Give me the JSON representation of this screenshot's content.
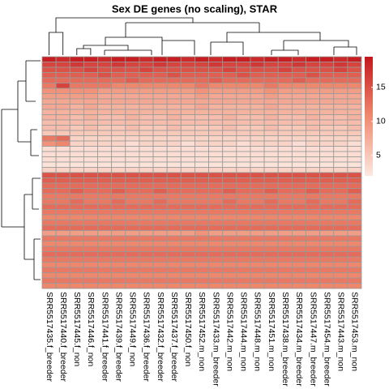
{
  "chart_data": {
    "type": "heatmap",
    "title": "Sex DE genes (no scaling), STAR",
    "columns": [
      "SRR5517435.f_breeder",
      "SRR5517440.f_breeder",
      "SRR5517445.f_non",
      "SRR5517446.f_non",
      "SRR5517441.f_breeder",
      "SRR5517439.f_breeder",
      "SRR5517449.f_non",
      "SRR5517436.f_breeder",
      "SRR5517432.f_breeder",
      "SRR5517437.f_breeder",
      "SRR5517450.f_non",
      "SRR5517452.m_non",
      "SRR5517433.m_breeder",
      "SRR5517442.m_non",
      "SRR5517444.m_non",
      "SRR5517448.m_non",
      "SRR5517451.m_non",
      "SRR5517438.m_breeder",
      "SRR5517434.m_breeder",
      "SRR5517447.m_breeder",
      "SRR5517454.m_breeder",
      "SRR5517443.m_non",
      "SRR5517453.m_non"
    ],
    "matrix": [
      [
        19,
        18,
        19,
        19,
        18,
        19,
        19,
        18,
        19,
        19,
        18,
        19,
        18,
        19,
        19,
        18,
        19,
        19,
        18,
        19,
        19,
        18,
        19
      ],
      [
        16,
        16,
        17,
        16,
        16,
        17,
        16,
        16,
        17,
        16,
        16,
        16,
        17,
        16,
        16,
        17,
        16,
        16,
        17,
        16,
        16,
        17,
        16
      ],
      [
        15,
        15,
        15,
        16,
        15,
        15,
        15,
        16,
        15,
        15,
        15,
        15,
        15,
        16,
        15,
        15,
        15,
        16,
        15,
        15,
        15,
        16,
        15
      ],
      [
        14,
        14,
        14,
        14,
        15,
        14,
        14,
        14,
        14,
        15,
        14,
        14,
        14,
        14,
        15,
        14,
        14,
        14,
        14,
        15,
        14,
        14,
        14
      ],
      [
        13,
        13,
        13,
        13,
        13,
        13,
        14,
        13,
        13,
        13,
        13,
        13,
        14,
        13,
        13,
        13,
        13,
        13,
        14,
        13,
        13,
        13,
        13
      ],
      [
        12,
        16,
        12,
        12,
        12,
        11,
        11,
        11,
        11,
        11,
        11,
        12,
        11,
        11,
        11,
        11,
        12,
        11,
        11,
        11,
        11,
        11,
        11
      ],
      [
        10,
        10,
        10,
        10,
        9,
        9,
        9,
        9,
        9,
        9,
        9,
        10,
        9,
        9,
        9,
        9,
        10,
        9,
        9,
        9,
        9,
        9,
        9
      ],
      [
        9,
        9,
        9,
        9,
        8,
        8,
        8,
        8,
        8,
        8,
        8,
        9,
        8,
        8,
        8,
        8,
        9,
        8,
        8,
        8,
        8,
        8,
        8
      ],
      [
        8,
        8,
        8,
        8,
        8,
        8,
        8,
        8,
        8,
        8,
        8,
        8,
        8,
        8,
        8,
        8,
        8,
        8,
        8,
        8,
        8,
        8,
        8
      ],
      [
        8,
        8,
        7,
        8,
        7,
        7,
        7,
        7,
        7,
        7,
        7,
        8,
        7,
        7,
        7,
        7,
        8,
        7,
        7,
        7,
        7,
        7,
        7
      ],
      [
        7,
        7,
        7,
        7,
        7,
        7,
        7,
        7,
        7,
        7,
        7,
        7,
        7,
        7,
        7,
        7,
        7,
        7,
        7,
        7,
        7,
        7,
        7
      ],
      [
        7,
        7,
        6,
        7,
        6,
        6,
        7,
        6,
        6,
        7,
        6,
        6,
        6,
        7,
        6,
        6,
        7,
        6,
        6,
        7,
        6,
        6,
        7
      ],
      [
        6,
        6,
        6,
        6,
        6,
        6,
        6,
        6,
        6,
        6,
        6,
        6,
        6,
        6,
        6,
        6,
        6,
        6,
        6,
        6,
        6,
        6,
        6
      ],
      [
        6,
        6,
        5,
        6,
        5,
        5,
        6,
        5,
        5,
        6,
        5,
        5,
        5,
        6,
        5,
        5,
        6,
        5,
        5,
        6,
        5,
        5,
        6
      ],
      [
        5,
        5,
        5,
        5,
        5,
        5,
        5,
        5,
        5,
        5,
        5,
        5,
        5,
        5,
        5,
        5,
        5,
        5,
        5,
        5,
        5,
        5,
        5
      ],
      [
        12,
        13,
        4,
        4,
        4,
        4,
        4,
        4,
        4,
        4,
        4,
        4,
        4,
        4,
        4,
        4,
        4,
        4,
        4,
        4,
        4,
        4,
        4
      ],
      [
        10,
        11,
        4,
        4,
        4,
        4,
        3,
        4,
        4,
        4,
        3,
        4,
        4,
        4,
        3,
        4,
        4,
        4,
        3,
        4,
        4,
        4,
        3
      ],
      [
        3,
        3,
        3,
        3,
        3,
        3,
        3,
        3,
        3,
        3,
        3,
        3,
        3,
        3,
        3,
        3,
        3,
        3,
        3,
        3,
        3,
        3,
        3
      ],
      [
        3,
        3,
        3,
        3,
        3,
        3,
        3,
        3,
        3,
        3,
        3,
        3,
        3,
        3,
        3,
        3,
        3,
        3,
        3,
        3,
        3,
        3,
        3
      ],
      [
        3,
        3,
        3,
        3,
        3,
        3,
        3,
        3,
        3,
        3,
        3,
        3,
        3,
        3,
        3,
        3,
        3,
        3,
        3,
        3,
        3,
        3,
        3
      ],
      [
        2.5,
        2.5,
        2.5,
        2.5,
        2.5,
        2.5,
        2.5,
        2.5,
        2.5,
        2.5,
        2.5,
        2.5,
        2.5,
        2.5,
        2.5,
        2.5,
        2.5,
        2.5,
        2.5,
        2.5,
        2.5,
        2.5,
        2.5
      ],
      [
        4,
        4,
        4,
        4,
        4,
        4,
        4,
        4,
        4,
        4,
        4,
        4,
        4,
        4,
        4,
        4,
        4,
        4,
        4,
        4,
        4,
        4,
        4
      ],
      [
        15,
        15,
        15,
        15,
        15,
        15,
        15,
        15,
        15,
        15,
        15,
        15,
        15,
        15,
        15,
        15,
        15,
        15,
        15,
        15,
        15,
        15,
        15
      ],
      [
        14,
        14,
        14,
        14,
        14,
        14,
        14,
        14,
        14,
        14,
        14,
        14,
        14,
        14,
        14,
        14,
        14,
        14,
        14,
        14,
        14,
        14,
        14
      ],
      [
        13,
        13,
        13,
        13,
        13,
        13,
        13,
        13,
        13,
        13,
        13,
        13,
        13,
        13,
        13,
        13,
        13,
        13,
        13,
        13,
        13,
        13,
        13
      ],
      [
        13,
        13,
        14,
        13,
        13,
        14,
        13,
        13,
        14,
        13,
        13,
        13,
        13,
        14,
        13,
        13,
        14,
        13,
        13,
        14,
        13,
        13,
        14
      ],
      [
        12,
        12,
        12,
        12,
        12,
        12,
        12,
        12,
        12,
        12,
        12,
        12,
        12,
        12,
        12,
        12,
        12,
        12,
        12,
        12,
        12,
        12,
        12
      ],
      [
        12,
        12,
        13,
        12,
        12,
        13,
        12,
        12,
        13,
        12,
        12,
        12,
        12,
        13,
        12,
        12,
        13,
        12,
        12,
        13,
        12,
        12,
        13
      ],
      [
        13,
        13,
        13,
        13,
        13,
        13,
        13,
        13,
        13,
        13,
        13,
        13,
        13,
        13,
        13,
        13,
        13,
        13,
        13,
        13,
        13,
        13,
        13
      ],
      [
        12,
        12,
        12,
        12,
        12,
        12,
        12,
        12,
        12,
        12,
        12,
        12,
        12,
        12,
        12,
        12,
        12,
        12,
        12,
        12,
        12,
        12,
        12
      ],
      [
        11,
        11,
        11,
        11,
        11,
        11,
        11,
        11,
        11,
        11,
        11,
        11,
        11,
        11,
        11,
        11,
        11,
        11,
        11,
        11,
        11,
        11,
        11
      ],
      [
        12,
        12,
        12,
        12,
        12,
        12,
        12,
        12,
        12,
        12,
        12,
        12,
        12,
        12,
        12,
        12,
        12,
        12,
        12,
        12,
        12,
        12,
        12
      ],
      [
        13,
        13,
        13,
        13,
        13,
        13,
        13,
        13,
        13,
        13,
        13,
        13,
        13,
        13,
        13,
        13,
        13,
        13,
        13,
        13,
        13,
        13,
        13
      ],
      [
        9,
        9,
        9,
        9,
        9,
        9,
        9,
        9,
        9,
        9,
        9,
        10,
        9,
        9,
        9,
        9,
        9,
        9,
        9,
        9,
        9,
        9,
        9
      ],
      [
        12,
        12,
        12,
        12,
        12,
        12,
        12,
        12,
        12,
        12,
        12,
        12,
        12,
        12,
        12,
        12,
        12,
        12,
        12,
        12,
        12,
        12,
        12
      ],
      [
        11,
        11,
        11,
        11,
        11,
        11,
        11,
        11,
        11,
        11,
        11,
        11,
        11,
        11,
        11,
        11,
        11,
        11,
        11,
        11,
        11,
        11,
        11
      ],
      [
        12,
        12,
        12,
        12,
        12,
        12,
        12,
        12,
        12,
        12,
        12,
        12,
        12,
        12,
        12,
        12,
        12,
        12,
        12,
        12,
        12,
        12,
        12
      ],
      [
        13,
        13,
        13,
        13,
        13,
        13,
        13,
        13,
        13,
        13,
        13,
        13,
        13,
        13,
        13,
        13,
        13,
        13,
        13,
        13,
        13,
        13,
        13
      ],
      [
        12,
        12,
        12,
        12,
        12,
        12,
        12,
        12,
        12,
        12,
        12,
        12,
        12,
        12,
        12,
        12,
        12,
        12,
        12,
        12,
        12,
        12,
        12
      ],
      [
        11,
        11,
        11,
        11,
        11,
        11,
        11,
        11,
        11,
        11,
        11,
        11,
        11,
        11,
        11,
        11,
        11,
        11,
        11,
        11,
        11,
        11,
        11
      ],
      [
        12,
        12,
        12,
        12,
        12,
        12,
        12,
        12,
        12,
        12,
        12,
        12,
        12,
        12,
        12,
        12,
        12,
        12,
        12,
        12,
        12,
        12,
        12
      ],
      [
        11,
        11,
        11,
        11,
        11,
        11,
        11,
        11,
        11,
        11,
        11,
        11,
        11,
        11,
        11,
        11,
        11,
        11,
        11,
        11,
        11,
        11,
        11
      ],
      [
        12,
        12,
        12,
        12,
        12,
        12,
        12,
        12,
        12,
        12,
        12,
        12,
        12,
        12,
        12,
        12,
        12,
        12,
        12,
        12,
        12,
        12,
        12
      ],
      [
        11,
        11,
        11,
        11,
        11,
        11,
        11,
        11,
        11,
        11,
        11,
        11,
        11,
        11,
        11,
        11,
        11,
        11,
        11,
        11,
        11,
        11,
        11
      ]
    ],
    "colors": [
      "#fce8e0",
      "#f08a6f",
      "#c4161c"
    ],
    "zlim": [
      2,
      19.5
    ],
    "zticks": [
      5,
      10,
      15
    ],
    "border_color": "#999999"
  }
}
